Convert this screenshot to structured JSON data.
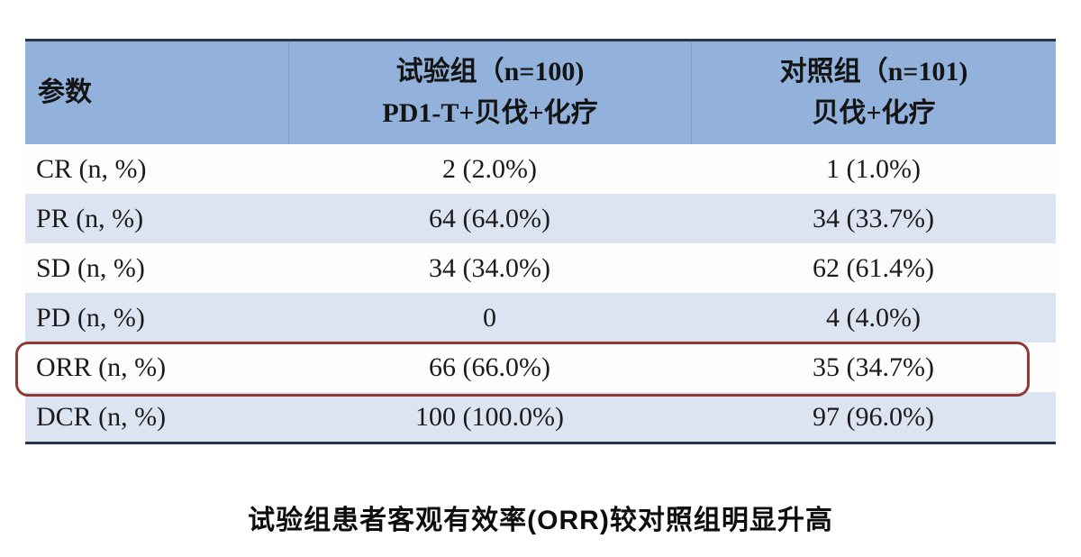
{
  "table": {
    "header": {
      "col_param": "参数",
      "col_experimental_line1": "试验组（n=100)",
      "col_experimental_line2": "PD1-T+贝伐+化疗",
      "col_control_line1": "对照组（n=101)",
      "col_control_line2": "贝伐+化疗"
    },
    "rows": [
      {
        "label": "CR (n,  %)",
        "experimental": "2 (2.0%)",
        "control": "1 (1.0%)"
      },
      {
        "label": "PR (n,  %)",
        "experimental": "64 (64.0%)",
        "control": "34 (33.7%)"
      },
      {
        "label": "SD (n,  %)",
        "experimental": "34 (34.0%)",
        "control": "62 (61.4%)"
      },
      {
        "label": "PD (n,  %)",
        "experimental": "0",
        "control": "4 (4.0%)"
      },
      {
        "label": "ORR (n,  %)",
        "experimental": "66 (66.0%)",
        "control": "35 (34.7%)"
      },
      {
        "label": "DCR (n,  %)",
        "experimental": "100 (100.0%)",
        "control": "97 (96.0%)"
      }
    ],
    "highlighted_row_label": "ORR (n,  %)",
    "colors": {
      "header_bg": "#92b2dc",
      "alt_row_bg": "#dce4f1",
      "border_dark": "#26354f",
      "highlight_border": "#8e3b38"
    }
  },
  "caption": "试验组患者客观有效率(ORR)较对照组明显升高",
  "chart_data": {
    "type": "table",
    "title": "试验组患者客观有效率(ORR)较对照组明显升高",
    "columns": [
      "参数",
      "试验组（n=100) PD1-T+贝伐+化疗",
      "对照组（n=101) 贝伐+化疗"
    ],
    "rows": [
      [
        "CR (n, %)",
        "2 (2.0%)",
        "1 (1.0%)"
      ],
      [
        "PR (n, %)",
        "64 (64.0%)",
        "34 (33.7%)"
      ],
      [
        "SD (n, %)",
        "34 (34.0%)",
        "62 (61.4%)"
      ],
      [
        "PD (n, %)",
        "0",
        "4 (4.0%)"
      ],
      [
        "ORR (n, %)",
        "66 (66.0%)",
        "35 (34.7%)"
      ],
      [
        "DCR (n, %)",
        "100 (100.0%)",
        "97 (96.0%)"
      ]
    ]
  }
}
